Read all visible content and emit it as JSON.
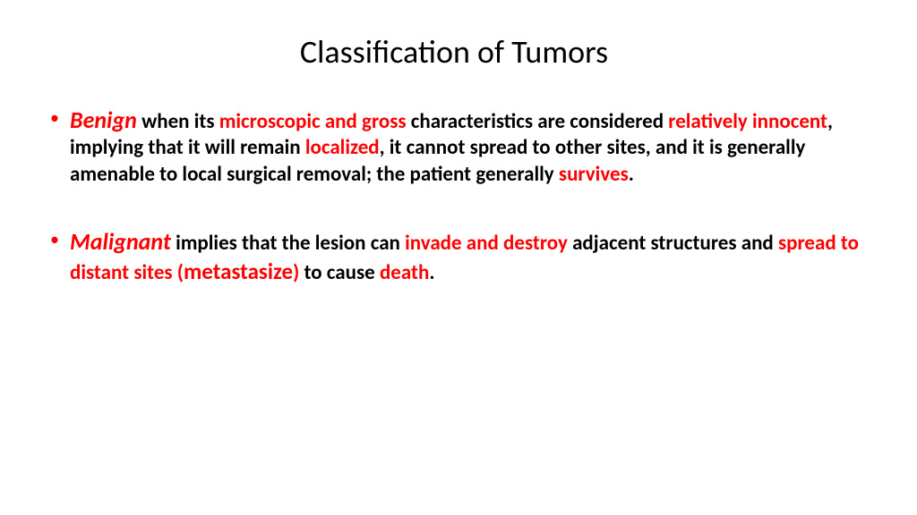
{
  "title": "Classification of Tumors",
  "colors": {
    "highlight": "#ff0000",
    "text": "#000000",
    "background": "#ffffff",
    "bullet": "#ff0000"
  },
  "typography": {
    "title_fontsize": 36,
    "lead_fontsize": 26,
    "body_fontsize": 23,
    "emphasis_fontsize": 25,
    "body_weight": 700,
    "lead_style": "italic"
  },
  "bullets": [
    {
      "lead": "Benign",
      "segments": [
        {
          "t": " when its ",
          "hl": false
        },
        {
          "t": "microscopic and gross",
          "hl": true
        },
        {
          "t": " characteristics are considered ",
          "hl": false
        },
        {
          "t": "relatively innocent",
          "hl": true
        },
        {
          "t": ", implying that it will remain ",
          "hl": false
        },
        {
          "t": "localized",
          "hl": true
        },
        {
          "t": ", it cannot spread to other sites, and it is generally amenable to local surgical removal; the patient generally ",
          "hl": false
        },
        {
          "t": "survives",
          "hl": true
        },
        {
          "t": ".",
          "hl": false
        }
      ]
    },
    {
      "lead": "Malignant",
      "segments": [
        {
          "t": " implies that the lesion can ",
          "hl": false
        },
        {
          "t": "invade and destroy",
          "hl": true
        },
        {
          "t": " adjacent structures and ",
          "hl": false
        },
        {
          "t": "spread to distant sites (",
          "hl": true
        },
        {
          "t": "metastasize",
          "hl": true,
          "big": true
        },
        {
          "t": ")",
          "hl": true
        },
        {
          "t": " to cause ",
          "hl": false
        },
        {
          "t": "death",
          "hl": true
        },
        {
          "t": ".",
          "hl": false
        }
      ]
    }
  ]
}
